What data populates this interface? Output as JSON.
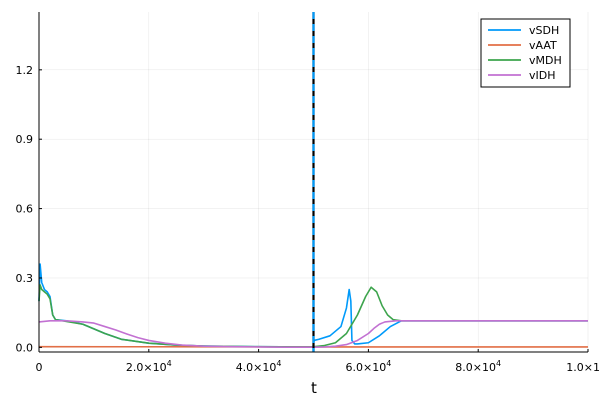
{
  "chart_data": {
    "type": "line",
    "title": "",
    "xlabel": "t",
    "ylabel": "",
    "xlim": [
      0,
      100000
    ],
    "ylim": [
      -0.02,
      1.45
    ],
    "grid": true,
    "legend_position": "top-right",
    "x_ticks": [
      {
        "value": 0,
        "label": "0"
      },
      {
        "value": 20000,
        "label": "2.0×10",
        "exp": "4"
      },
      {
        "value": 40000,
        "label": "4.0×10",
        "exp": "4"
      },
      {
        "value": 60000,
        "label": "6.0×10",
        "exp": "4"
      },
      {
        "value": 80000,
        "label": "8.0×10",
        "exp": "4"
      },
      {
        "value": 100000,
        "label": "1.0×1",
        "exp": ""
      }
    ],
    "y_ticks": [
      {
        "value": 0.0,
        "label": "0.0"
      },
      {
        "value": 0.3,
        "label": "0.3"
      },
      {
        "value": 0.6,
        "label": "0.6"
      },
      {
        "value": 0.9,
        "label": "0.9"
      },
      {
        "value": 1.2,
        "label": "1.2"
      }
    ],
    "vertical_line": {
      "x": 50000,
      "y_top": 1.45,
      "colors": [
        "#000000",
        "#009AFA"
      ]
    },
    "series": [
      {
        "name": "vSDH",
        "color": "#009AFA",
        "x": [
          0,
          200,
          500,
          1000,
          1500,
          2000,
          2500,
          3000,
          5000,
          8000,
          10000,
          12000,
          15000,
          20000,
          25000,
          30000,
          40000,
          48000,
          49900,
          50100,
          51000,
          53000,
          55000,
          56000,
          56500,
          56800,
          57000,
          57500,
          58000,
          60000,
          62000,
          64000,
          66000,
          70000,
          80000,
          90000,
          100000
        ],
        "y": [
          0.2,
          0.36,
          0.28,
          0.25,
          0.24,
          0.22,
          0.14,
          0.12,
          0.115,
          0.1,
          0.08,
          0.06,
          0.035,
          0.018,
          0.01,
          0.006,
          0.003,
          0.002,
          0.002,
          0.03,
          0.035,
          0.05,
          0.09,
          0.17,
          0.25,
          0.2,
          0.03,
          0.015,
          0.015,
          0.02,
          0.05,
          0.09,
          0.115,
          0.115,
          0.115,
          0.115,
          0.115
        ]
      },
      {
        "name": "vAAT",
        "color": "#E26F46",
        "x": [
          0,
          50000,
          100000
        ],
        "y": [
          0.003,
          0.002,
          0.002
        ]
      },
      {
        "name": "vMDH",
        "color": "#3DA44D",
        "x": [
          0,
          200,
          500,
          1000,
          1500,
          2000,
          2500,
          3000,
          5000,
          8000,
          10000,
          12000,
          15000,
          20000,
          25000,
          30000,
          40000,
          48000,
          49900,
          50100,
          52000,
          54000,
          56000,
          58000,
          59500,
          60500,
          61500,
          62500,
          63500,
          64500,
          66000,
          70000,
          80000,
          90000,
          100000
        ],
        "y": [
          0.2,
          0.27,
          0.25,
          0.24,
          0.23,
          0.21,
          0.14,
          0.12,
          0.112,
          0.1,
          0.08,
          0.06,
          0.035,
          0.018,
          0.01,
          0.006,
          0.003,
          0.002,
          0.002,
          0.003,
          0.008,
          0.02,
          0.06,
          0.14,
          0.22,
          0.26,
          0.24,
          0.18,
          0.14,
          0.12,
          0.115,
          0.115,
          0.115,
          0.115,
          0.115
        ]
      },
      {
        "name": "vIDH",
        "color": "#C271D2",
        "x": [
          0,
          2000,
          5000,
          8000,
          10000,
          12000,
          14000,
          16000,
          18000,
          20000,
          23000,
          26000,
          30000,
          35000,
          40000,
          45000,
          50000,
          52000,
          54000,
          56000,
          58000,
          60000,
          61000,
          62000,
          63000,
          65000,
          70000,
          80000,
          90000,
          100000
        ],
        "y": [
          0.11,
          0.115,
          0.115,
          0.11,
          0.105,
          0.09,
          0.075,
          0.058,
          0.042,
          0.03,
          0.018,
          0.01,
          0.005,
          0.003,
          0.002,
          0.001,
          0.001,
          0.002,
          0.005,
          0.012,
          0.03,
          0.06,
          0.082,
          0.1,
          0.11,
          0.115,
          0.115,
          0.115,
          0.115,
          0.115
        ]
      }
    ]
  }
}
